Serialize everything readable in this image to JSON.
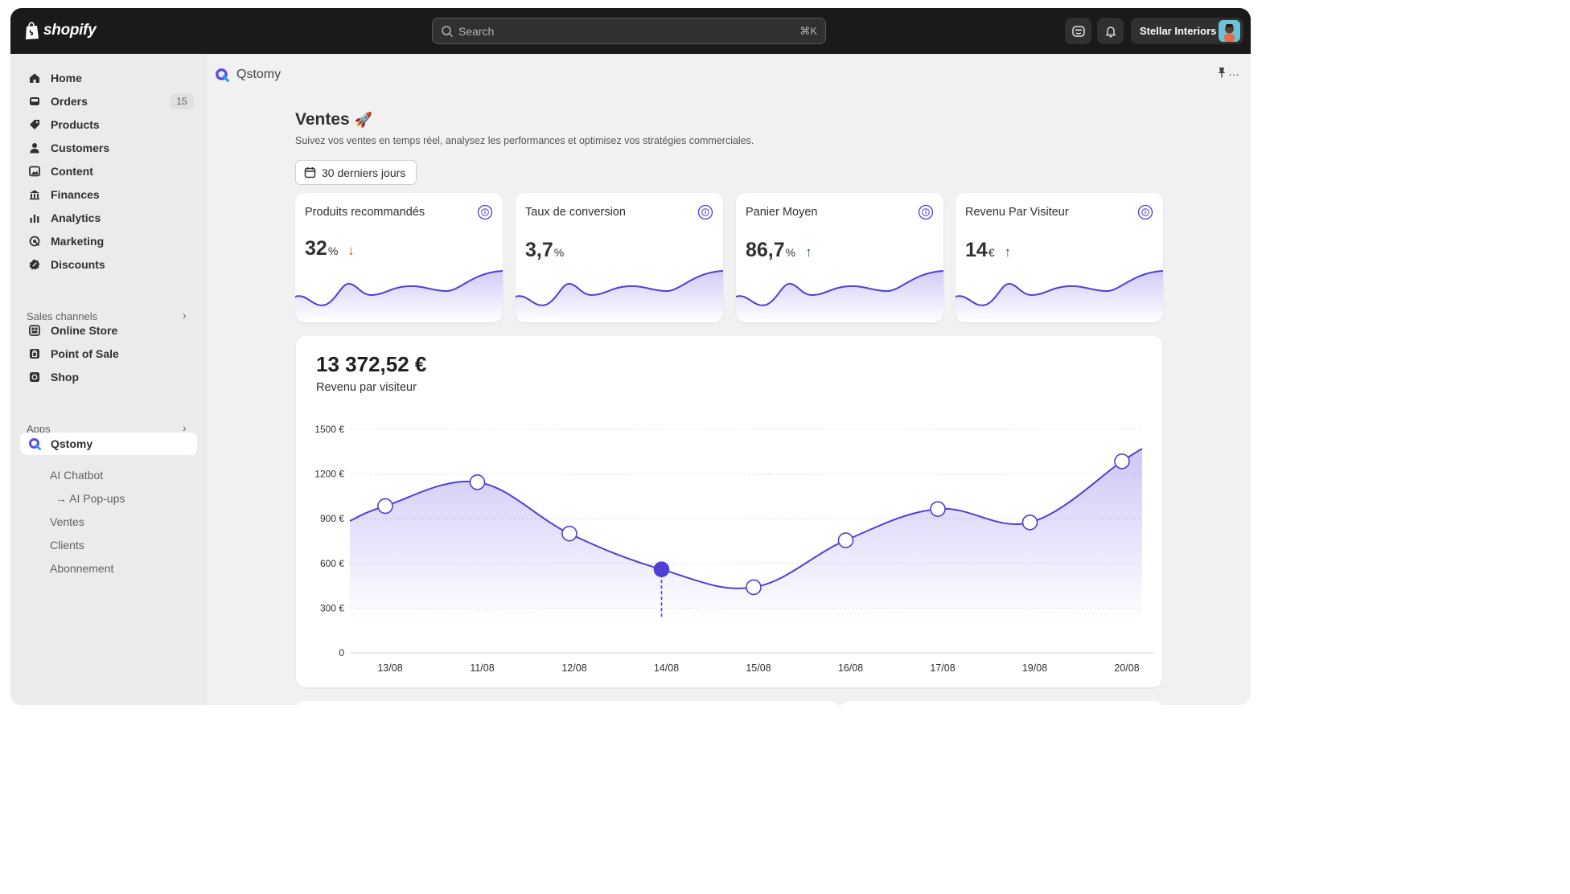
{
  "topbar": {
    "brand": "shopify",
    "search_placeholder": "Search",
    "search_shortcut": "⌘K",
    "store_name": "Stellar Interiors"
  },
  "sidebar": {
    "items": [
      {
        "label": "Home",
        "icon": "home-icon"
      },
      {
        "label": "Orders",
        "icon": "inbox-icon",
        "badge": "15"
      },
      {
        "label": "Products",
        "icon": "tag-icon"
      },
      {
        "label": "Customers",
        "icon": "person-icon"
      },
      {
        "label": "Content",
        "icon": "image-icon"
      },
      {
        "label": "Finances",
        "icon": "bank-icon"
      },
      {
        "label": "Analytics",
        "icon": "bar-chart-icon"
      },
      {
        "label": "Marketing",
        "icon": "target-icon"
      },
      {
        "label": "Discounts",
        "icon": "discount-icon"
      }
    ],
    "sales_channels_label": "Sales channels",
    "channels": [
      {
        "label": "Online Store",
        "icon": "store-icon"
      },
      {
        "label": "Point of Sale",
        "icon": "pos-icon"
      },
      {
        "label": "Shop",
        "icon": "shop-icon"
      }
    ],
    "apps_label": "Apps",
    "active_app": "Qstomy",
    "app_subitems": [
      "AI Chatbot",
      "→ AI Pop-ups",
      "Ventes",
      "Clients",
      "Abonnement"
    ]
  },
  "main": {
    "app_title": "Qstomy",
    "page_title": "Ventes",
    "page_title_emoji": "🚀",
    "subtitle": "Suivez vos ventes en temps réel, analysez les performances et optimisez vos stratégies commerciales.",
    "date_range": "30 derniers jours",
    "kpis": [
      {
        "title": "Produits recommandés",
        "value": "32",
        "unit": "%",
        "trend": "down"
      },
      {
        "title": "Taux de conversion",
        "value": "3,7",
        "unit": "%",
        "trend": "none"
      },
      {
        "title": "Panier Moyen",
        "value": "86,7",
        "unit": "%",
        "trend": "up"
      },
      {
        "title": "Revenu Par Visiteur",
        "value": "14",
        "unit": "€",
        "trend": "up"
      }
    ],
    "revenue_total": "13 372,52  €",
    "revenue_label": "Revenu par visiteur"
  },
  "colors": {
    "accent": "#4f3fd6",
    "down": "#d1483e",
    "up": "#2b5d3f",
    "topbar": "#1a1a1a"
  },
  "chart_data": {
    "type": "area",
    "x": [
      "13/08",
      "11/08",
      "12/08",
      "14/08",
      "15/08",
      "16/08",
      "17/08",
      "19/08",
      "20/08"
    ],
    "series": [
      {
        "values": [
          985,
          1145,
          800,
          560,
          440,
          755,
          965,
          875,
          1285
        ]
      }
    ],
    "start_value": 885,
    "end_value": 1370,
    "highlighted_point": "14/08",
    "ylim": [
      0,
      1500
    ],
    "y_ticks": [
      "0",
      "300 €",
      "600 €",
      "900 €",
      "1200 €",
      "1500 €"
    ],
    "grid": true
  }
}
